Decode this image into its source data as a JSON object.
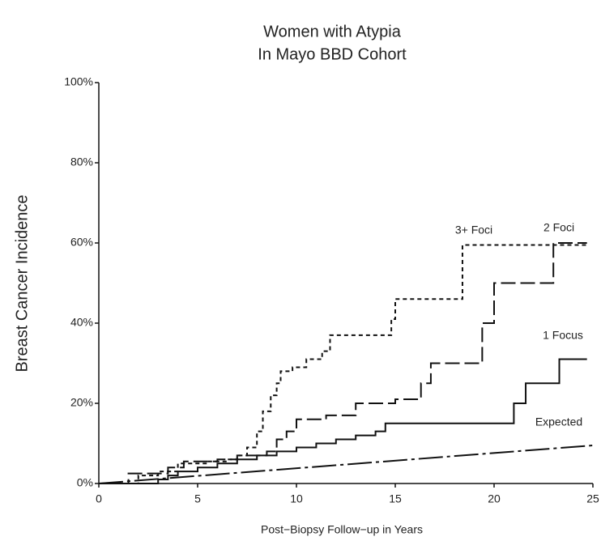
{
  "chart_data": {
    "type": "line",
    "title": "Women with Atypia",
    "subtitle": "In Mayo BBD Cohort",
    "y_label": "Breast Cancer Incidence",
    "x_label": "Post−Biopsy Follow−up in Years",
    "xlim": [
      0,
      25
    ],
    "xticks": [
      0,
      5,
      10,
      15,
      20,
      25
    ],
    "ylim": [
      0,
      100
    ],
    "yticks": [
      {
        "value": 0,
        "label": "0%"
      },
      {
        "value": 20,
        "label": "20%"
      },
      {
        "value": 40,
        "label": "40%"
      },
      {
        "value": 60,
        "label": "60%"
      },
      {
        "value": 80,
        "label": "80%"
      },
      {
        "value": 100,
        "label": "100%"
      }
    ],
    "grid": false,
    "series": [
      {
        "name": "3+ Foci",
        "color": "#111",
        "step": true,
        "dash": "5 4",
        "x": [
          0,
          2,
          3,
          4,
          5.5,
          6.5,
          7,
          7.5,
          8,
          8.3,
          8.7,
          9,
          9.2,
          9.8,
          10.5,
          11.3,
          11.7,
          14.8,
          15,
          18.4,
          24.7
        ],
        "values": [
          0,
          2,
          3,
          5,
          5.5,
          6,
          7,
          9,
          13,
          18,
          22,
          25,
          28,
          29,
          31,
          33,
          37,
          41,
          46,
          59.5,
          59.5
        ]
      },
      {
        "name": "2 Foci",
        "color": "#111",
        "step": true,
        "dash": "18 6",
        "x": [
          0,
          1.5,
          3.5,
          4.3,
          6,
          7,
          8.5,
          9,
          9.5,
          10,
          11.5,
          13,
          15,
          16.3,
          16.8,
          19.4,
          20,
          23,
          24.7
        ],
        "values": [
          0,
          2.5,
          4,
          5.5,
          6,
          7,
          8,
          11,
          13,
          16,
          17,
          20,
          21,
          25,
          30,
          40,
          50,
          60,
          60
        ]
      },
      {
        "name": "1 Focus",
        "color": "#111",
        "step": true,
        "dash": "none",
        "x": [
          0,
          3,
          3.5,
          4,
          5,
          6,
          7,
          8,
          9,
          10,
          11,
          12,
          13,
          14,
          14.5,
          20.8,
          21,
          21.6,
          23.3,
          24.7
        ],
        "values": [
          0,
          1,
          2,
          3,
          4,
          5,
          6,
          7,
          8,
          9,
          10,
          11,
          12,
          13,
          15,
          15,
          20,
          25,
          31,
          31
        ]
      },
      {
        "name": "Expected",
        "color": "#111",
        "step": false,
        "dash": "30 5 4 5",
        "x": [
          0,
          25
        ],
        "values": [
          0,
          9.5
        ]
      }
    ]
  }
}
